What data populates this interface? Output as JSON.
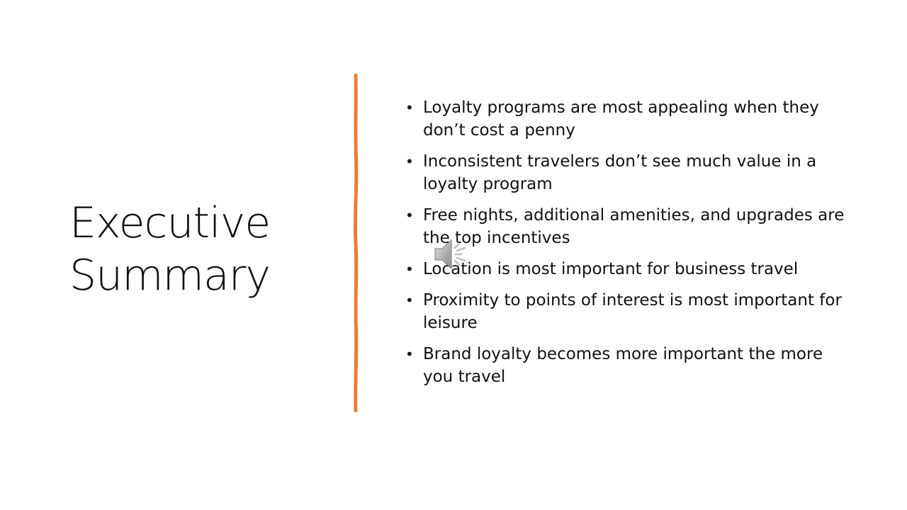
{
  "slide": {
    "title_lines": [
      "Executive",
      "Summary"
    ],
    "bullets": [
      "Loyalty programs are most appealing when they don’t cost a penny",
      "Inconsistent travelers don’t see much value in a loyalty program",
      "Free nights, additional amenities, and upgrades are the top incentives",
      "Location is most important for business travel",
      "Proximity to points of interest is most important for leisure",
      "Brand loyalty becomes more important the more you travel"
    ],
    "bullet_glyph": "•",
    "divider_color": "#ED7D31",
    "speaker_icon": "speaker-icon"
  }
}
